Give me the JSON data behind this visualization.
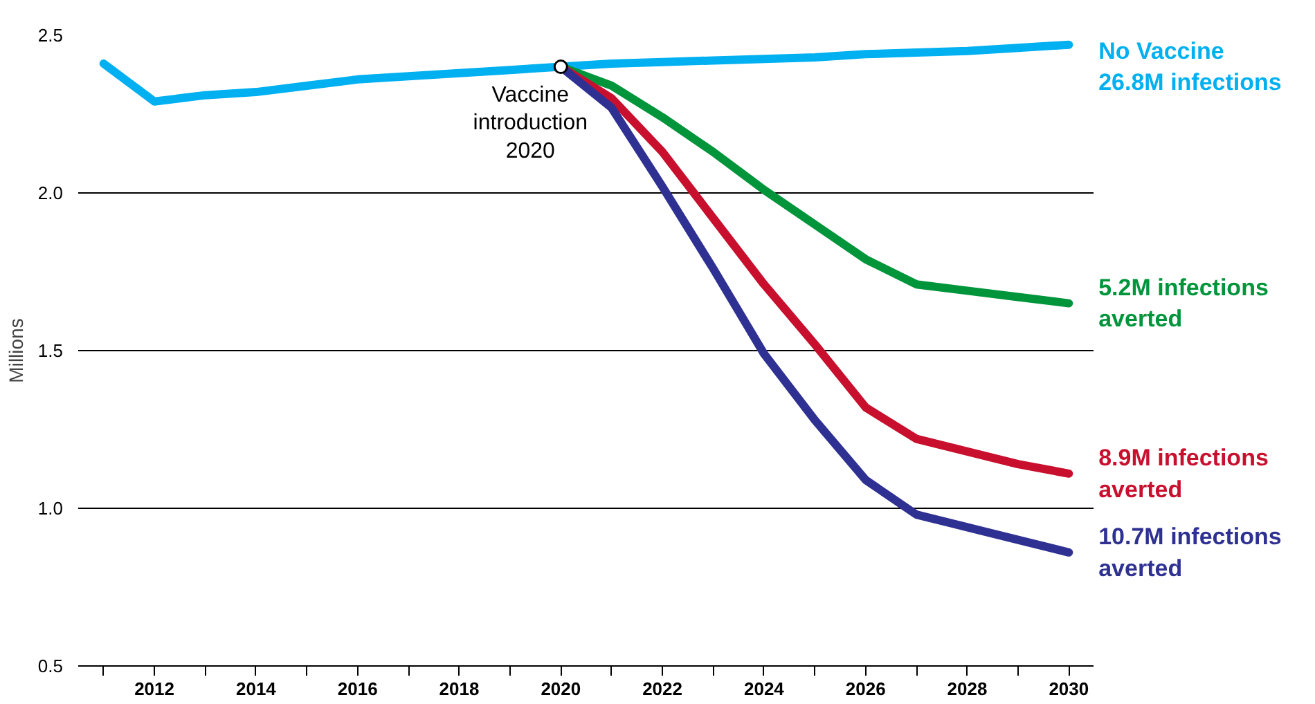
{
  "chart_data": {
    "type": "line",
    "ylabel": "Millions",
    "x": [
      2011,
      2012,
      2013,
      2014,
      2015,
      2016,
      2017,
      2018,
      2019,
      2020,
      2021,
      2022,
      2023,
      2024,
      2025,
      2026,
      2027,
      2028,
      2029,
      2030
    ],
    "series": [
      {
        "name": "No Vaccine\n26.8M infections",
        "color": "#00b0f0",
        "values": [
          2.41,
          2.29,
          2.31,
          2.32,
          2.34,
          2.36,
          2.37,
          2.38,
          2.39,
          2.4,
          2.41,
          2.415,
          2.42,
          2.425,
          2.43,
          2.44,
          2.445,
          2.45,
          2.46,
          2.47
        ]
      },
      {
        "name": "5.2M infections\naverted",
        "color": "#00953a",
        "values": [
          null,
          null,
          null,
          null,
          null,
          null,
          null,
          null,
          null,
          2.4,
          2.34,
          2.24,
          2.13,
          2.01,
          1.9,
          1.79,
          1.71,
          1.69,
          1.67,
          1.65
        ]
      },
      {
        "name": "8.9M infections\naverted",
        "color": "#c8102e",
        "values": [
          null,
          null,
          null,
          null,
          null,
          null,
          null,
          null,
          null,
          2.4,
          2.3,
          2.13,
          1.92,
          1.71,
          1.52,
          1.32,
          1.22,
          1.18,
          1.14,
          1.11
        ]
      },
      {
        "name": "10.7M infections\naverted",
        "color": "#2e3192",
        "values": [
          null,
          null,
          null,
          null,
          null,
          null,
          null,
          null,
          null,
          2.4,
          2.27,
          2.02,
          1.76,
          1.49,
          1.28,
          1.09,
          0.98,
          0.94,
          0.9,
          0.86
        ]
      }
    ],
    "annotations": [
      {
        "text": "Vaccine\nintroduction\n2020",
        "x": 2020,
        "y": 2.4
      }
    ],
    "xlim": [
      2010.5,
      2030.5
    ],
    "xticks": [
      {
        "value": 2011,
        "label": null
      },
      2012,
      {
        "value": 2013,
        "label": null
      },
      2014,
      {
        "value": 2015,
        "label": null
      },
      2016,
      {
        "value": 2017,
        "label": null
      },
      2018,
      {
        "value": 2019,
        "label": null
      },
      2020,
      {
        "value": 2021,
        "label": null
      },
      2022,
      {
        "value": 2023,
        "label": null
      },
      2024,
      {
        "value": 2025,
        "label": null
      },
      2026,
      {
        "value": 2027,
        "label": null
      },
      2028,
      {
        "value": 2029,
        "label": null
      },
      2030
    ],
    "ylim": [
      0.5,
      2.5
    ],
    "yticks": [
      0.5,
      {
        "value": 1,
        "label": "1.0"
      },
      1.5,
      {
        "value": 2,
        "label": "2.0"
      },
      2.5
    ],
    "grid": "y",
    "legend": false,
    "line_style": "solid",
    "marker": "none"
  }
}
